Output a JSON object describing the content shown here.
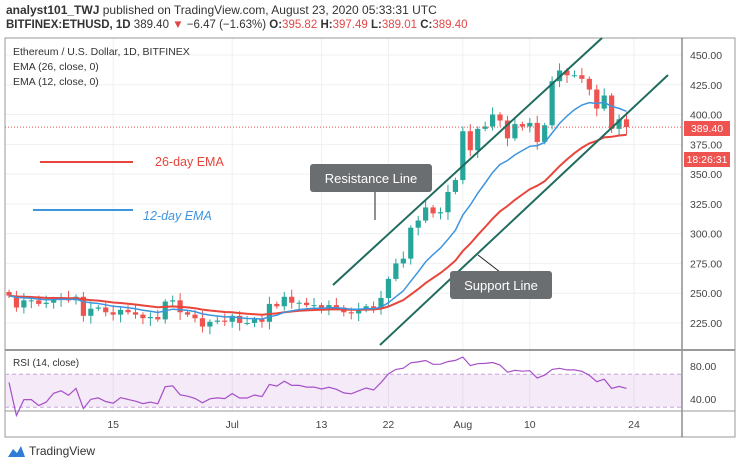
{
  "header": {
    "author": "analyst101_TWJ",
    "published": "published on TradingView.com, August 23, 2020 05:33:31 UTC",
    "symbol": "BITFINEX:ETHUSD, 1D",
    "last": "389.40",
    "change": "−6.47 (−1.63%)",
    "o_label": "O:",
    "o": "395.82",
    "h_label": "H:",
    "h": "397.49",
    "l_label": "L:",
    "l": "389.01",
    "c_label": "C:",
    "c": "389.40"
  },
  "legend": {
    "title": "Ethereum / U.S. Dollar, 1D, BITFINEX",
    "ema26": "EMA (26, close, 0)",
    "ema12": "EMA (12, close, 0)"
  },
  "annotations": {
    "ema26_label": "26-day EMA",
    "ema12_label": "12-day EMA",
    "resistance": "Resistance Line",
    "support": "Support Line"
  },
  "price_badge": "389.40",
  "countdown": "18:26:31",
  "rsi_label": "RSI (14, close)",
  "brand": "TradingView",
  "colors": {
    "up": "#26a69a",
    "down": "#ef5350",
    "ema26": "#e8453c",
    "ema12": "#3d95e0",
    "rsi": "#a64fc7",
    "trend": "#1f6b5e"
  },
  "chart_data": {
    "type": "candlestick",
    "start_date": "2020-06-01",
    "closes": [
      248,
      238,
      244,
      244,
      241,
      242,
      245,
      246,
      244,
      247,
      231,
      237,
      238,
      234,
      232,
      236,
      234,
      232,
      229,
      230,
      228,
      243,
      244,
      234,
      232,
      229,
      222,
      226,
      227,
      226,
      231,
      225,
      225,
      228,
      226,
      241,
      239,
      247,
      242,
      242,
      240,
      240,
      238,
      240,
      238,
      234,
      233,
      236,
      239,
      237,
      246,
      262,
      275,
      279,
      305,
      311,
      322,
      317,
      318,
      335,
      345,
      386,
      370,
      388,
      390,
      400,
      395,
      380,
      392,
      390,
      393,
      377,
      391,
      428,
      437,
      433,
      433,
      430,
      421,
      405,
      416,
      388,
      396,
      389.4
    ],
    "y_ticks": [
      225,
      250,
      275,
      300,
      325,
      350,
      375,
      400,
      425,
      450
    ],
    "y_tick_labels": [
      "225.00",
      "250.00",
      "275.00",
      "300.00",
      "325.00",
      "350.00",
      "375.00",
      "400.00",
      "425.00",
      "450.00"
    ],
    "x_ticks": [
      {
        "day": 14,
        "label": "15"
      },
      {
        "day": 30,
        "label": "Jul"
      },
      {
        "day": 42,
        "label": "13"
      },
      {
        "day": 51,
        "label": "22"
      },
      {
        "day": 61,
        "label": "Aug"
      },
      {
        "day": 70,
        "label": "10"
      },
      {
        "day": 84,
        "label": "24"
      }
    ],
    "rsi_ticks": [
      {
        "v": 80,
        "label": "80.00"
      },
      {
        "v": 40,
        "label": "40.00"
      }
    ],
    "rsi_band": [
      30,
      70
    ]
  }
}
